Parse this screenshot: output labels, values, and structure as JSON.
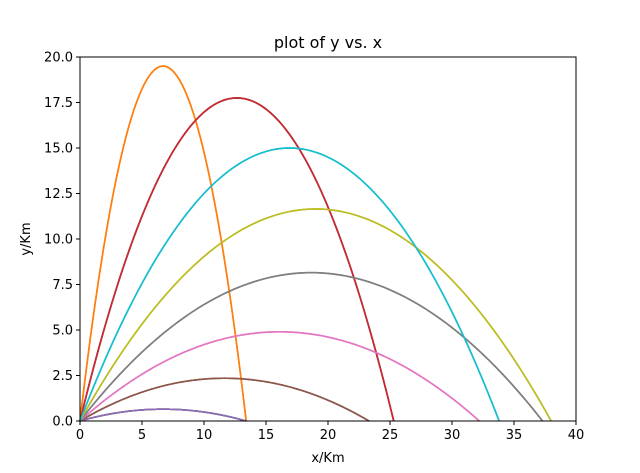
{
  "chart_data": {
    "type": "line",
    "title": "plot of y vs. x",
    "xlabel": "x/Km",
    "ylabel": "y/Km",
    "xlim": [
      0,
      40
    ],
    "ylim": [
      0,
      20
    ],
    "x_ticks": [
      "0",
      "5",
      "10",
      "15",
      "20",
      "25",
      "30",
      "35",
      "40"
    ],
    "y_ticks": [
      "0.0",
      "2.5",
      "5.0",
      "7.5",
      "10.0",
      "12.5",
      "15.0",
      "17.5",
      "20.0"
    ],
    "grid": false,
    "legend": "none",
    "series": [
      {
        "color": "#1f77b4",
        "range": 25.3,
        "apex": 17.75
      },
      {
        "color": "#ff7f0e",
        "range": 13.4,
        "apex": 19.5
      },
      {
        "color": "#2ca02c",
        "range": 13.4,
        "apex": 0.65
      },
      {
        "color": "#d62728",
        "range": 25.3,
        "apex": 17.75
      },
      {
        "color": "#9467bd",
        "range": 13.4,
        "apex": 0.65
      },
      {
        "color": "#8c564b",
        "range": 23.3,
        "apex": 2.35
      },
      {
        "color": "#e377c2",
        "range": 32.2,
        "apex": 4.9
      },
      {
        "color": "#7f7f7f",
        "range": 37.3,
        "apex": 8.15
      },
      {
        "color": "#bcbd22",
        "range": 38.0,
        "apex": 11.65
      },
      {
        "color": "#17becf",
        "range": 33.8,
        "apex": 15.0
      },
      {
        "color": "#1f77b4",
        "range": 25.3,
        "apex": 17.75
      },
      {
        "color": "#ff7f0e",
        "range": 13.4,
        "apex": 19.5
      },
      {
        "color": "#2ca02c",
        "range": 13.4,
        "apex": 0.65
      },
      {
        "color": "#d62728",
        "range": 25.3,
        "apex": 17.75
      },
      {
        "color": "#9467bd",
        "range": 13.4,
        "apex": 0.65
      },
      {
        "color": "#8c564b",
        "range": 23.3,
        "apex": 2.35
      },
      {
        "color": "#e377c2",
        "range": 32.2,
        "apex": 4.9
      },
      {
        "color": "#7f7f7f",
        "range": 37.3,
        "apex": 8.15
      },
      {
        "color": "#bcbd22",
        "range": 38.0,
        "apex": 11.65
      },
      {
        "color": "#17becf",
        "range": 33.8,
        "apex": 15.0
      }
    ]
  }
}
